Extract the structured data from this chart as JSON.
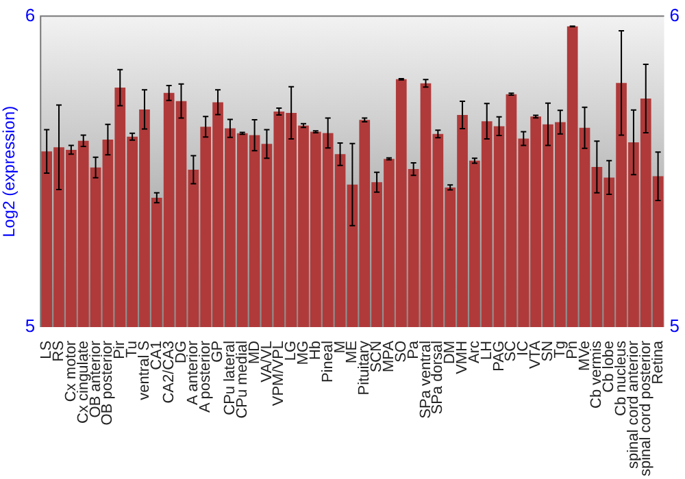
{
  "chart_data": {
    "type": "bar",
    "ylabel": "Log2 (expression)",
    "categories": [
      "LS",
      "RS",
      "Cx motor",
      "Cx cingulate",
      "OB anterior",
      "OB posterior",
      "Pir",
      "Tu",
      "ventral S",
      "CA1",
      "CA2/CA3",
      "DG",
      "A anterior",
      "A posterior",
      "GP",
      "CPu lateral",
      "CPu medial",
      "MD",
      "VA/VL",
      "VPM/VPL",
      "LG",
      "MG",
      "Hb",
      "Pineal",
      "M",
      "ME",
      "Pituitary",
      "SCN",
      "MPA",
      "SO",
      "Pa",
      "SPa ventral",
      "SPa dorsal",
      "DM",
      "VMH",
      "Arc",
      "LH",
      "PAG",
      "SC",
      "IC",
      "VTA",
      "SN",
      "Tg",
      "Pn",
      "MVe",
      "Cb vermis",
      "Cb lobe",
      "Cb nucleus",
      "spinal cord anterior",
      "spinal cord posterior",
      "Retina"
    ],
    "values": [
      5.565,
      5.578,
      5.57,
      5.599,
      5.513,
      5.603,
      5.77,
      5.612,
      5.7,
      5.416,
      5.753,
      5.727,
      5.506,
      5.644,
      5.723,
      5.639,
      5.623,
      5.617,
      5.589,
      5.693,
      5.689,
      5.648,
      5.628,
      5.624,
      5.556,
      5.458,
      5.666,
      5.466,
      5.541,
      5.797,
      5.508,
      5.784,
      5.621,
      5.449,
      5.682,
      5.535,
      5.662,
      5.646,
      5.749,
      5.606,
      5.677,
      5.652,
      5.659,
      5.967,
      5.641,
      5.515,
      5.481,
      5.785,
      5.594,
      5.735,
      5.485
    ],
    "errors": [
      0.07,
      0.136,
      0.014,
      0.018,
      0.033,
      0.049,
      0.058,
      0.011,
      0.063,
      0.016,
      0.024,
      0.055,
      0.045,
      0.033,
      0.04,
      0.029,
      0.003,
      0.05,
      0.046,
      0.011,
      0.084,
      0.006,
      0.003,
      0.048,
      0.036,
      0.132,
      0.006,
      0.032,
      0.003,
      0.002,
      0.02,
      0.012,
      0.012,
      0.008,
      0.044,
      0.008,
      0.057,
      0.03,
      0.003,
      0.022,
      0.004,
      0.068,
      0.038,
      0.001,
      0.066,
      0.083,
      0.054,
      0.168,
      0.104,
      0.11,
      0.078
    ],
    "color": "#b03a3a",
    "ylim": [
      5,
      6
    ],
    "yticks": [
      5,
      6
    ],
    "y2lim": [
      5,
      6
    ],
    "y2ticks": [
      5,
      6
    ],
    "grid": false,
    "legend": false
  }
}
